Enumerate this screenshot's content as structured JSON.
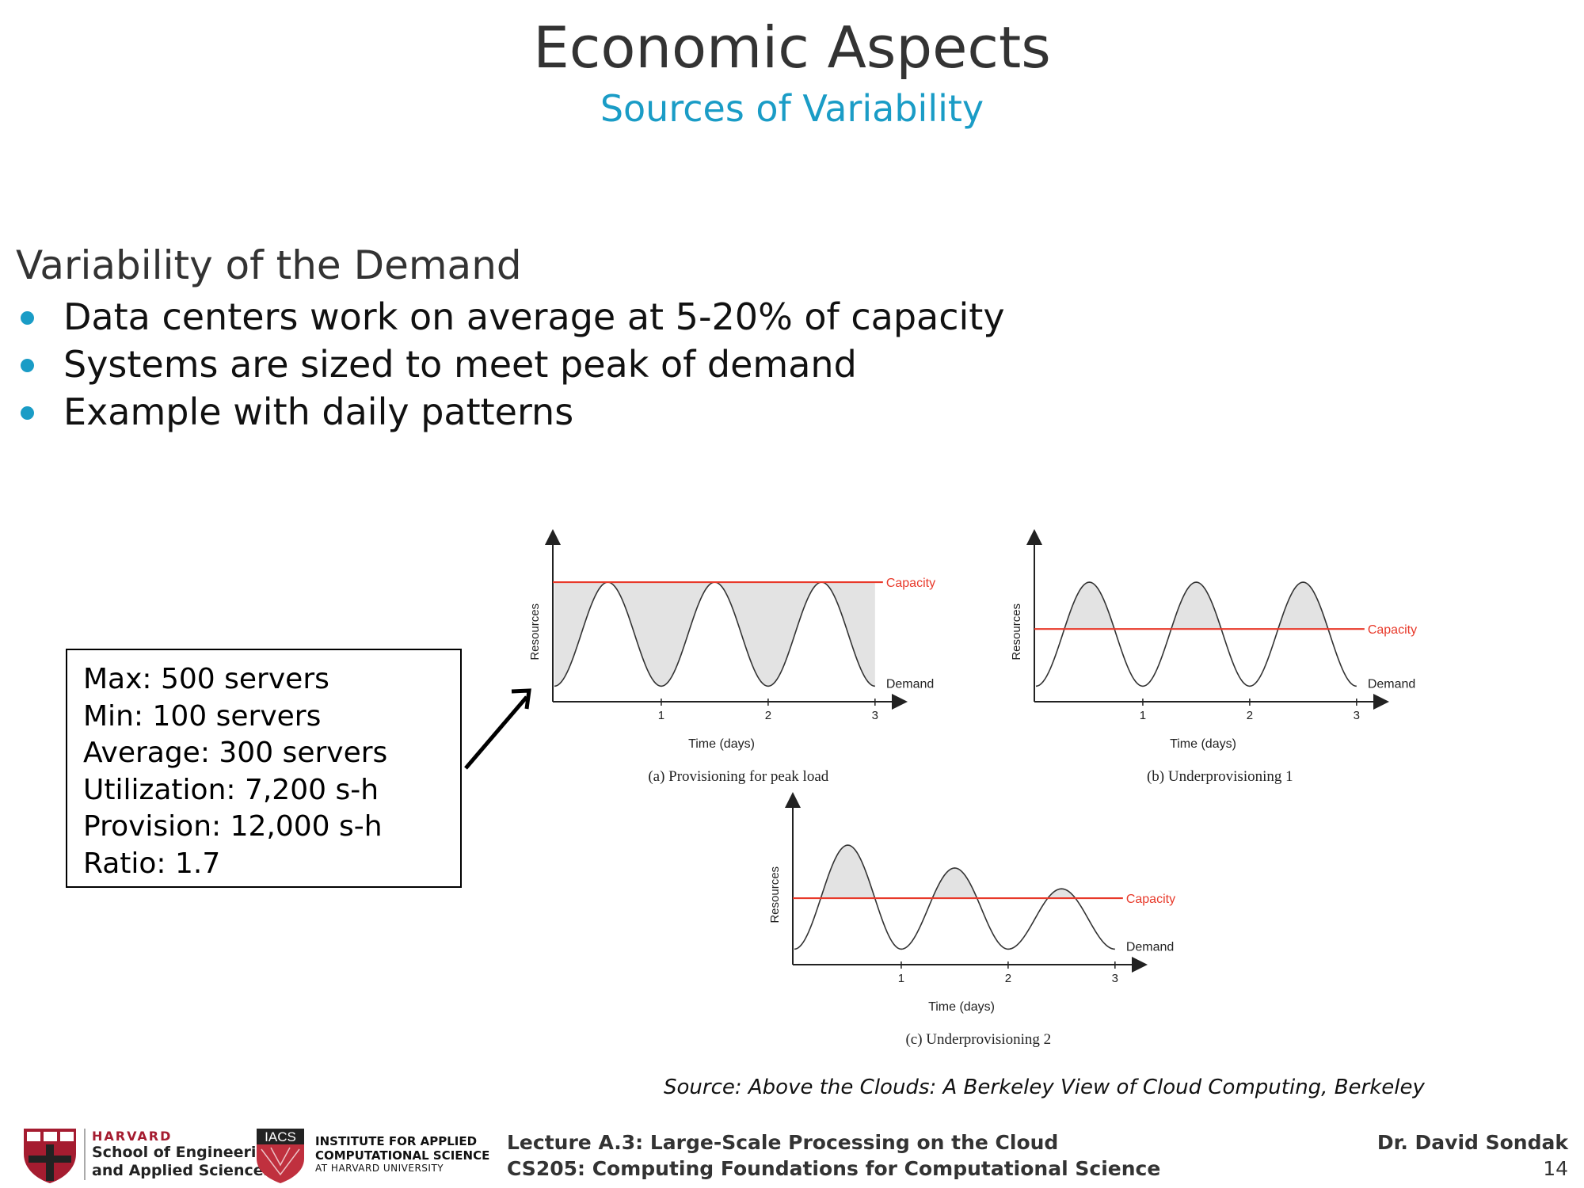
{
  "slide": {
    "title": "Economic Aspects",
    "subtitle": "Sources of Variability",
    "section_heading": "Variability of the Demand",
    "bullets": [
      "Data centers work on average at 5-20% of capacity",
      "Systems are sized to meet peak of demand",
      "Example with daily patterns"
    ],
    "stats": [
      "Max: 500 servers",
      "Min: 100 servers",
      "Average: 300 servers",
      "Utilization: 7,200 s-h",
      "Provision: 12,000 s-h",
      "Ratio: 1.7"
    ],
    "source": "Source: Above the Clouds: A Berkeley View of Cloud Computing, Berkeley"
  },
  "figures": {
    "y_label": "Resources",
    "x_label": "Time (days)",
    "capacity_label": "Capacity",
    "demand_label": "Demand",
    "x_ticks": [
      "1",
      "2",
      "3"
    ],
    "captions": {
      "a": "(a)  Provisioning for peak load",
      "b": "(b)  Underprovisioning 1",
      "c": "(c)  Underprovisioning 2"
    },
    "colors": {
      "capacity": "#e8392a",
      "demand": "#333333",
      "shade": "#e3e3e3"
    }
  },
  "footer": {
    "harvard": "HARVARD",
    "school_line1": "School of Engineering",
    "school_line2": "and Applied Sciences",
    "iacs_badge": "IACS",
    "iacs_line1": "INSTITUTE FOR APPLIED",
    "iacs_line2": "COMPUTATIONAL SCIENCE",
    "iacs_line3": "AT HARVARD UNIVERSITY",
    "lecture_line1": "Lecture A.3: Large-Scale Processing on the Cloud",
    "lecture_line2": "CS205: Computing Foundations for Computational Science",
    "author": "Dr. David Sondak",
    "page_number": "14"
  }
}
